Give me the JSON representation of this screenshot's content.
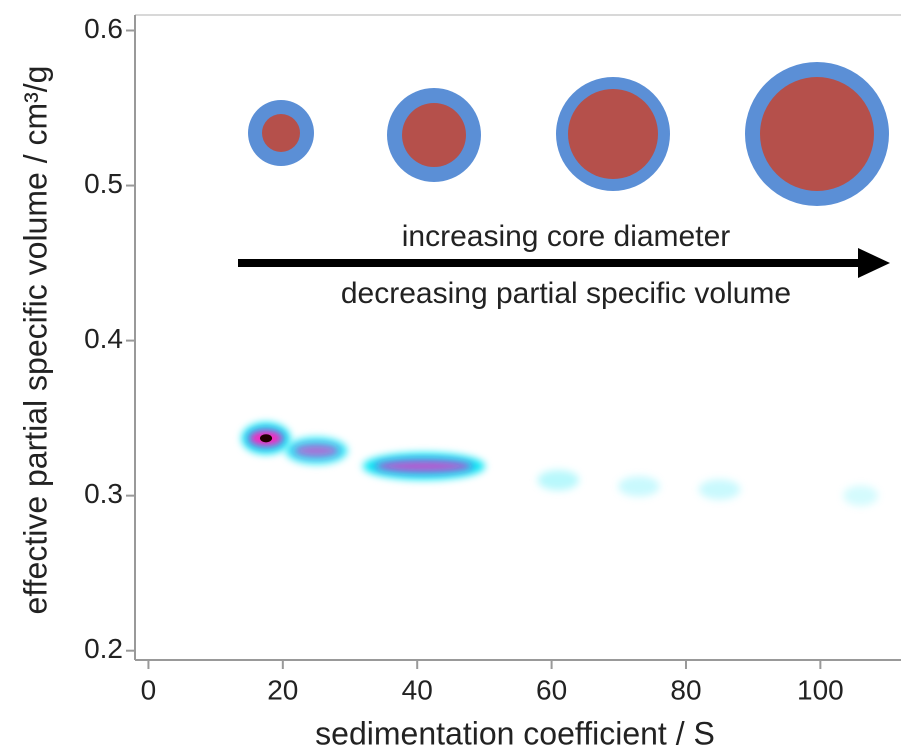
{
  "chart_data": {
    "type": "density",
    "xlabel": "sedimentation coefficient / S",
    "ylabel": "effective partial specific volume / cm³/g",
    "annotations": [
      "increasing core diameter",
      "decreasing partial specific volume"
    ],
    "xlim": [
      -2,
      112
    ],
    "ylim": [
      0.194,
      0.61
    ],
    "xticks": [
      0,
      20,
      40,
      60,
      80,
      100
    ],
    "yticks": [
      {
        "value": 0.2,
        "label": "0.2"
      },
      {
        "value": 0.3,
        "label": "0.3"
      },
      {
        "value": 0.4,
        "label": "0.4"
      },
      {
        "value": 0.5,
        "label": "0.5"
      },
      {
        "value": 0.6,
        "label": "0.6"
      }
    ],
    "x": [
      17.5,
      25,
      41,
      61,
      73,
      85,
      106
    ],
    "values": [
      0.337,
      0.329,
      0.319,
      0.31,
      0.306,
      0.304,
      0.3
    ],
    "x_width": [
      6,
      8,
      17,
      5,
      5,
      5,
      4
    ],
    "y_height": [
      0.015,
      0.012,
      0.012,
      0.008,
      0.008,
      0.008,
      0.008
    ],
    "intensity": [
      1,
      0.6,
      0.7,
      0.2,
      0.15,
      0.15,
      0.12
    ]
  }
}
